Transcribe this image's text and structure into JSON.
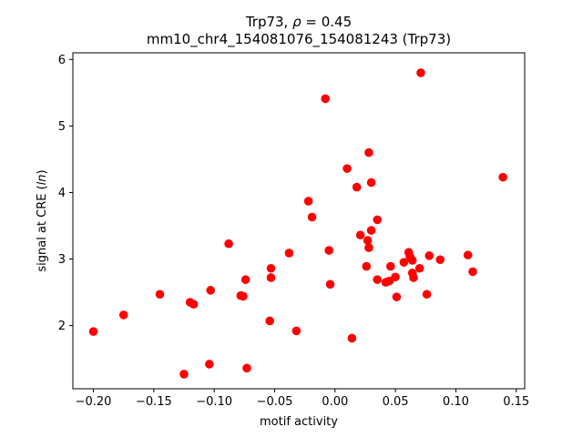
{
  "chart_data": {
    "type": "scatter",
    "title_line1_prefix": "Trp73, ",
    "title_line1_rho": "ρ",
    "title_line1_suffix": " = 0.45",
    "title_line2": "mm10_chr4_154081076_154081243 (Trp73)",
    "xlabel": "motif activity",
    "ylabel_prefix": "signal at CRE (",
    "ylabel_ln": "ln",
    "ylabel_suffix": ")",
    "xlim": [
      -0.217,
      0.157
    ],
    "ylim": [
      1.05,
      6.1
    ],
    "xticks": [
      -0.2,
      -0.15,
      -0.1,
      -0.05,
      0.0,
      0.05,
      0.1,
      0.15
    ],
    "xtick_labels": [
      "−0.20",
      "−0.15",
      "−0.10",
      "−0.05",
      "0.00",
      "0.05",
      "0.10",
      "0.15"
    ],
    "yticks": [
      2,
      3,
      4,
      5,
      6
    ],
    "ytick_labels": [
      "2",
      "3",
      "4",
      "5",
      "6"
    ],
    "grid": false,
    "marker_color": "#ff0000",
    "points": [
      [
        -0.2,
        1.91
      ],
      [
        -0.175,
        2.16
      ],
      [
        -0.145,
        2.47
      ],
      [
        -0.125,
        1.27
      ],
      [
        -0.12,
        2.35
      ],
      [
        -0.117,
        2.32
      ],
      [
        -0.104,
        1.42
      ],
      [
        -0.103,
        2.53
      ],
      [
        -0.088,
        3.23
      ],
      [
        -0.078,
        2.45
      ],
      [
        -0.076,
        2.44
      ],
      [
        -0.074,
        2.69
      ],
      [
        -0.073,
        1.36
      ],
      [
        -0.054,
        2.07
      ],
      [
        -0.053,
        2.86
      ],
      [
        -0.053,
        2.72
      ],
      [
        -0.038,
        3.09
      ],
      [
        -0.032,
        1.92
      ],
      [
        -0.022,
        3.87
      ],
      [
        -0.019,
        3.63
      ],
      [
        -0.008,
        5.41
      ],
      [
        -0.005,
        3.13
      ],
      [
        -0.004,
        2.62
      ],
      [
        0.01,
        4.36
      ],
      [
        0.014,
        1.81
      ],
      [
        0.018,
        4.08
      ],
      [
        0.021,
        3.36
      ],
      [
        0.026,
        2.89
      ],
      [
        0.027,
        3.28
      ],
      [
        0.028,
        3.17
      ],
      [
        0.028,
        4.6
      ],
      [
        0.03,
        3.43
      ],
      [
        0.03,
        4.15
      ],
      [
        0.035,
        3.59
      ],
      [
        0.035,
        2.69
      ],
      [
        0.042,
        2.65
      ],
      [
        0.045,
        2.67
      ],
      [
        0.046,
        2.89
      ],
      [
        0.05,
        2.73
      ],
      [
        0.051,
        2.43
      ],
      [
        0.057,
        2.95
      ],
      [
        0.061,
        3.1
      ],
      [
        0.062,
        3.04
      ],
      [
        0.064,
        2.98
      ],
      [
        0.064,
        2.79
      ],
      [
        0.065,
        2.72
      ],
      [
        0.07,
        2.86
      ],
      [
        0.071,
        5.8
      ],
      [
        0.076,
        2.47
      ],
      [
        0.078,
        3.05
      ],
      [
        0.087,
        2.99
      ],
      [
        0.11,
        3.06
      ],
      [
        0.114,
        2.81
      ],
      [
        0.139,
        4.23
      ]
    ]
  }
}
